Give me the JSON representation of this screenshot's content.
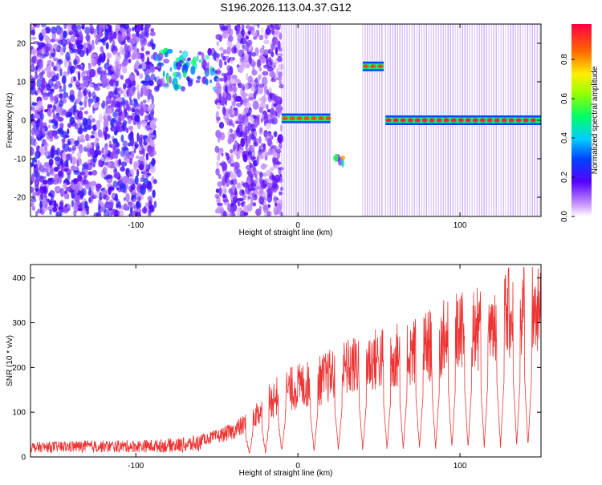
{
  "title": "S196.2026.113.04.37.G12",
  "chart_data": [
    {
      "type": "heatmap",
      "xlabel": "Height of straight line (km)",
      "ylabel": "Frequency (Hz)",
      "xlim": [
        -165,
        150
      ],
      "ylim": [
        -25,
        25
      ],
      "x_ticks": [
        -100,
        0,
        100
      ],
      "y_ticks": [
        -20,
        -10,
        0,
        10,
        20
      ],
      "colorbar": {
        "label": "Normalized spectral amplitude",
        "range": [
          0,
          0.98
        ],
        "ticks": [
          0.0,
          0.2,
          0.4,
          0.6,
          0.8
        ],
        "orientation": "vertical"
      },
      "features": [
        {
          "kind": "diffuse",
          "x_range": [
            -165,
            -88
          ],
          "freq_range": [
            -25,
            25
          ],
          "amplitude": 0.15
        },
        {
          "kind": "blob",
          "x_range": [
            -88,
            -50
          ],
          "freq_range": [
            8,
            18
          ],
          "amplitude": 0.3
        },
        {
          "kind": "diffuse",
          "x_range": [
            -50,
            -10
          ],
          "freq_range": [
            -25,
            25
          ],
          "amplitude": 0.12
        },
        {
          "kind": "line",
          "x_range": [
            -10,
            20
          ],
          "freq": 0.5,
          "amplitude": 0.9
        },
        {
          "kind": "blob",
          "x_range": [
            22,
            28
          ],
          "freq_range": [
            -12,
            -8
          ],
          "amplitude": 0.45
        },
        {
          "kind": "line",
          "x_range": [
            40,
            53
          ],
          "freq": 14,
          "amplitude": 0.9
        },
        {
          "kind": "line",
          "x_range": [
            54,
            150
          ],
          "freq": 0,
          "amplitude": 0.95
        }
      ]
    },
    {
      "type": "line",
      "xlabel": "Height of straight line (km)",
      "ylabel": "SNR (10 * v/v)",
      "xlim": [
        -165,
        150
      ],
      "ylim": [
        0,
        430
      ],
      "x_ticks": [
        -100,
        0,
        100
      ],
      "y_ticks": [
        0,
        100,
        200,
        300,
        400
      ],
      "series": [
        {
          "color": "#ee3333",
          "x": [
            -165,
            -150,
            -130,
            -110,
            -90,
            -70,
            -50,
            -40,
            -30,
            -20,
            -10,
            0,
            10,
            20,
            30,
            40,
            50,
            60,
            70,
            80,
            90,
            100,
            110,
            120,
            130,
            140,
            150
          ],
          "y": [
            25,
            28,
            30,
            30,
            32,
            38,
            55,
            70,
            95,
            140,
            175,
            190,
            200,
            220,
            240,
            255,
            265,
            275,
            285,
            300,
            320,
            340,
            345,
            360,
            385,
            400,
            380
          ],
          "dips_to": [
            -30,
            -20,
            -10,
            10,
            25,
            40,
            55,
            65,
            75,
            85,
            95,
            105,
            115,
            125,
            135,
            142
          ]
        }
      ]
    }
  ]
}
